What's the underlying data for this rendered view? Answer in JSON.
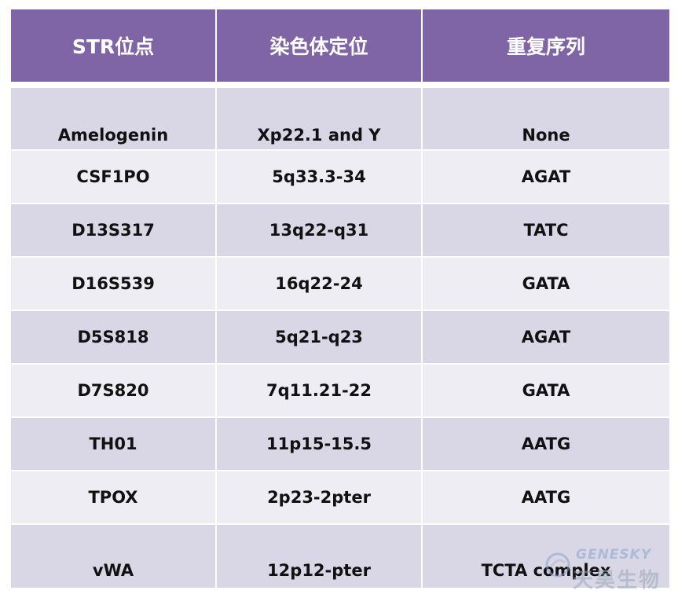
{
  "table": {
    "headers": [
      "STR位点",
      "染色体定位",
      "重复序列"
    ],
    "rows": [
      {
        "locus": "Amelogenin",
        "chromosome": "Xp22.1 and Y",
        "repeat": "None"
      },
      {
        "locus": "CSF1PO",
        "chromosome": "5q33.3-34",
        "repeat": "AGAT"
      },
      {
        "locus": "D13S317",
        "chromosome": "13q22-q31",
        "repeat": "TATC"
      },
      {
        "locus": "D16S539",
        "chromosome": "16q22-24",
        "repeat": "GATA"
      },
      {
        "locus": "D5S818",
        "chromosome": "5q21-q23",
        "repeat": "AGAT"
      },
      {
        "locus": "D7S820",
        "chromosome": "7q11.21-22",
        "repeat": "GATA"
      },
      {
        "locus": "TH01",
        "chromosome": "11p15-15.5",
        "repeat": "AATG"
      },
      {
        "locus": "TPOX",
        "chromosome": "2p23-2pter",
        "repeat": "AATG"
      },
      {
        "locus": "vWA",
        "chromosome": "12p12-pter",
        "repeat": "TCTA complex"
      }
    ]
  },
  "watermark": {
    "brand_en": "GENESKY",
    "brand_cn": "天昊生物"
  },
  "colors": {
    "header_bg": "#7f65a6",
    "header_text": "#ffffff",
    "row_dark": "#d9d7e6",
    "row_light": "#eeedf3"
  }
}
